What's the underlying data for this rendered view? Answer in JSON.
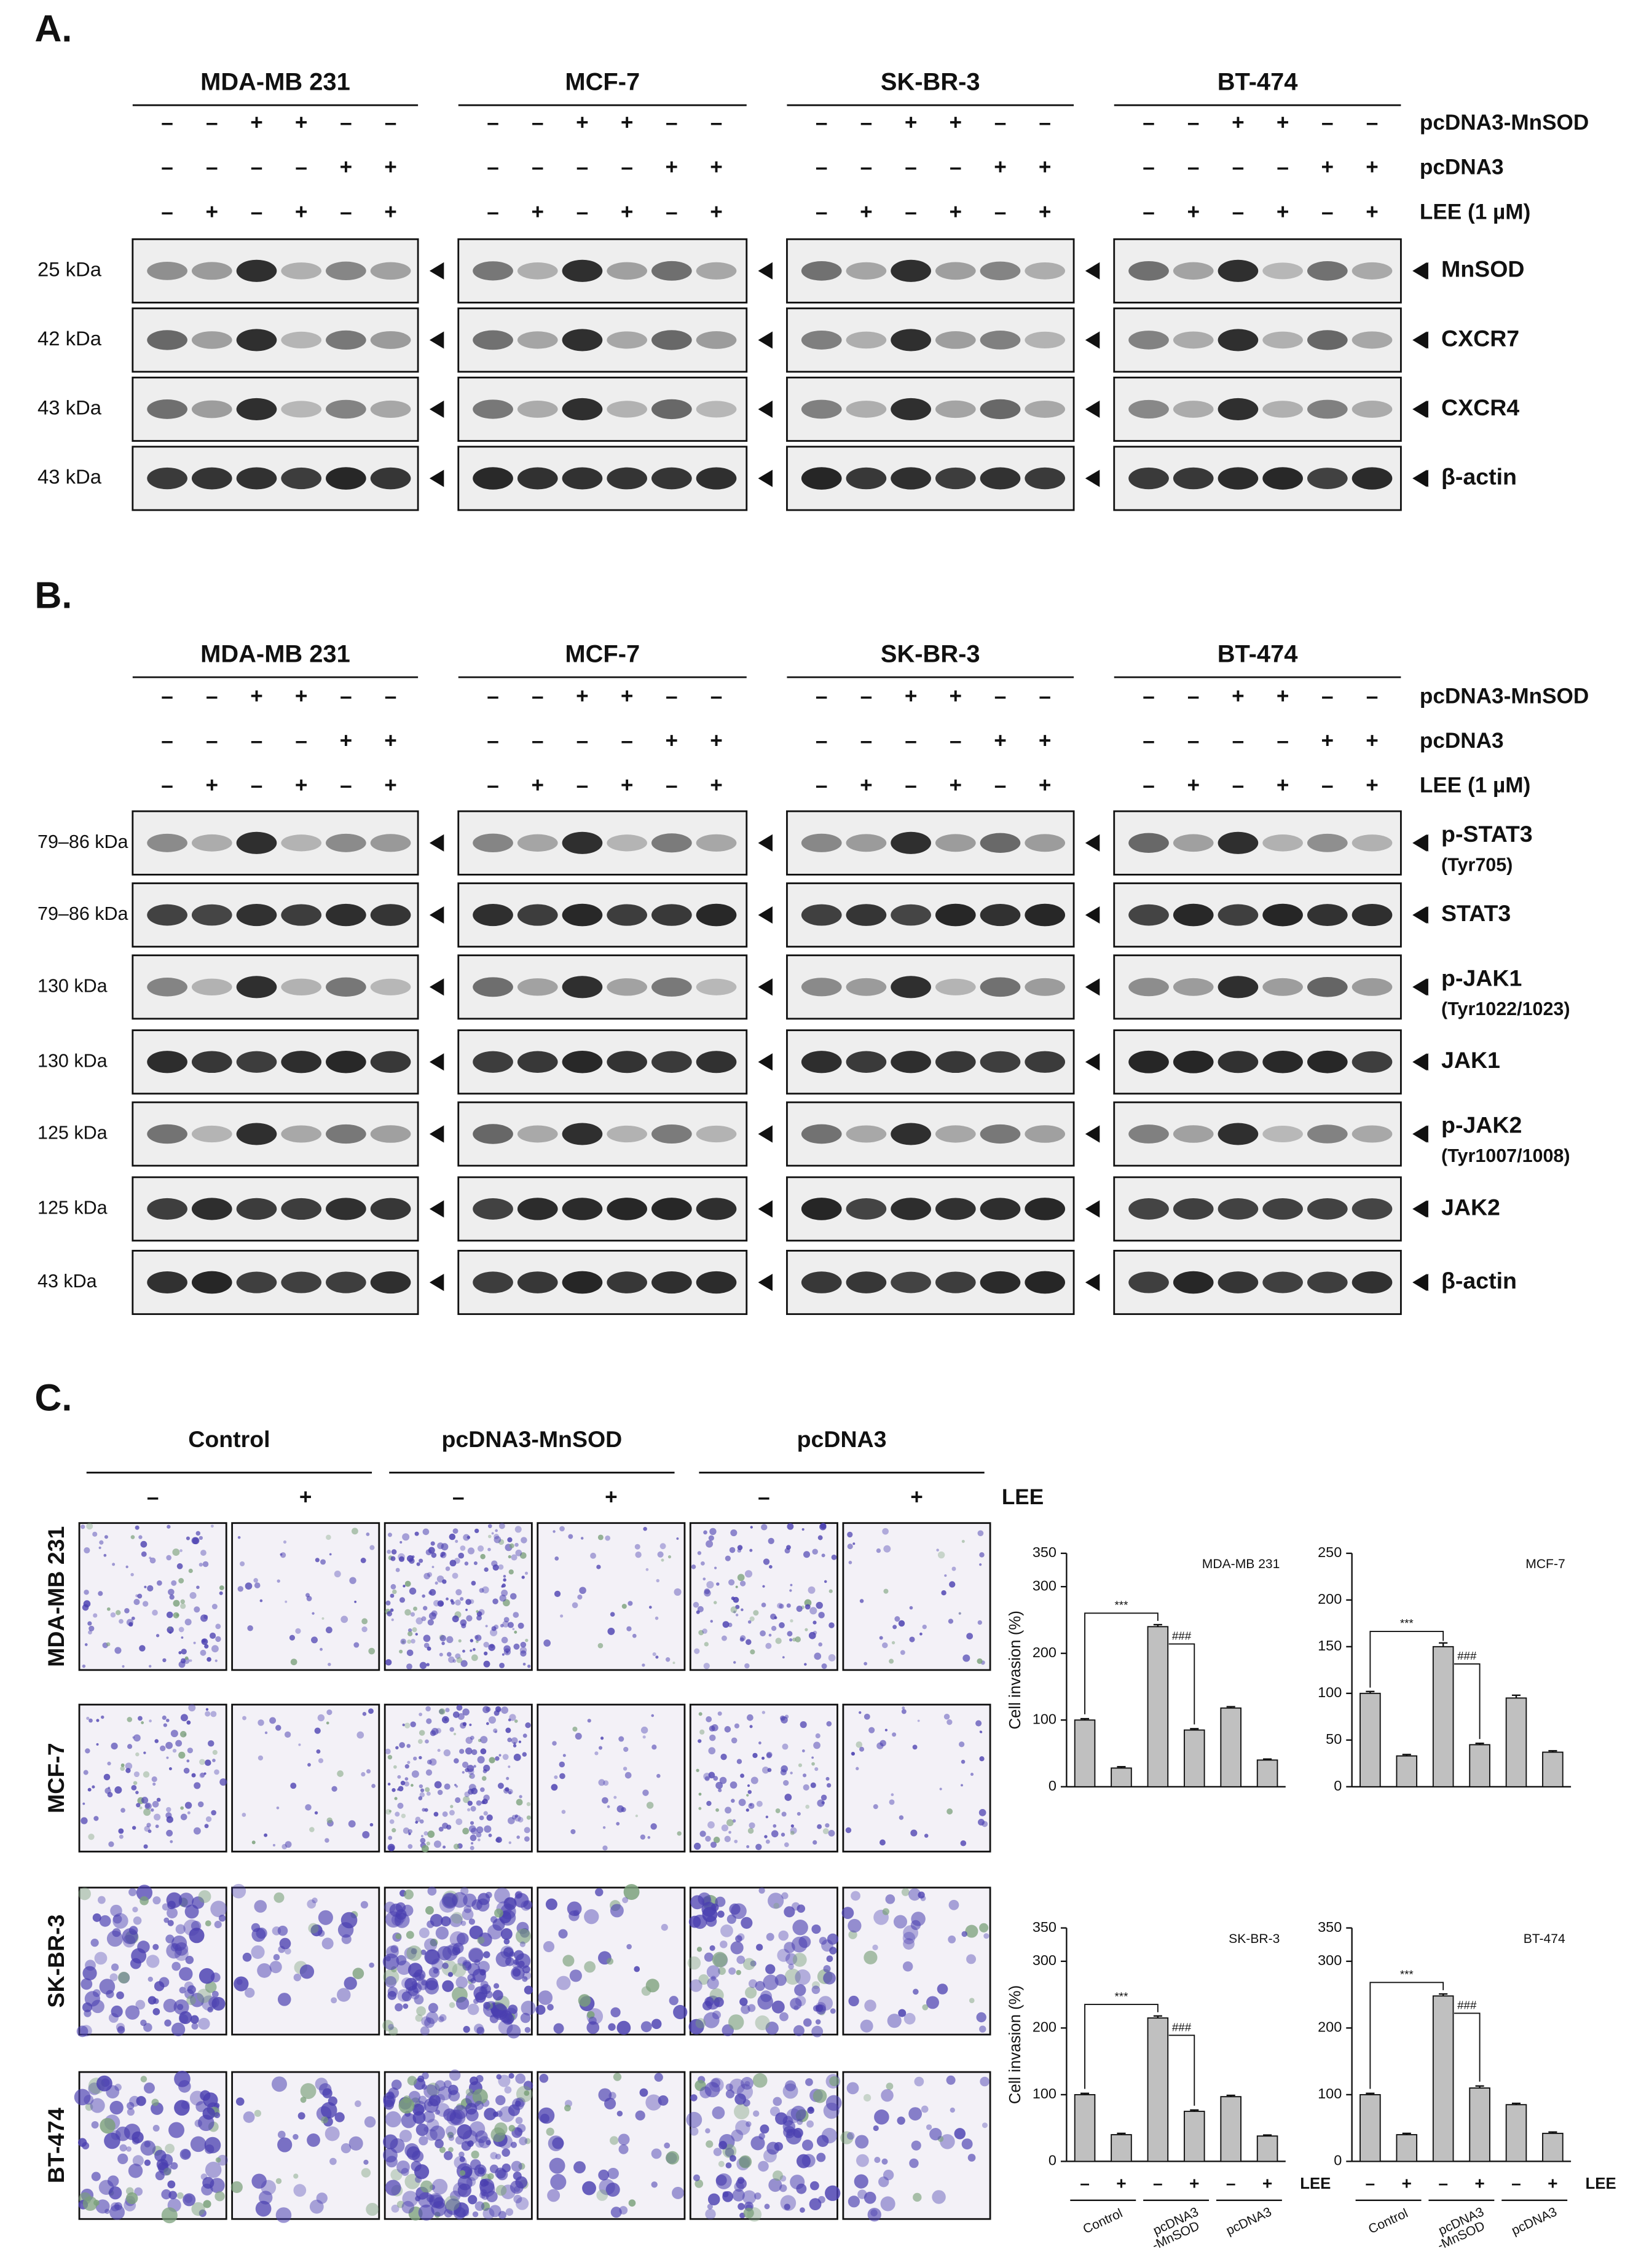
{
  "figure": {
    "panel_a": {
      "label": "A.",
      "cell_lines": [
        "MDA-MB 231",
        "MCF-7",
        "SK-BR-3",
        "BT-474"
      ],
      "conditions": [
        {
          "label": "pcDNA3-MnSOD",
          "signs": [
            "–",
            "–",
            "+",
            "+",
            "–",
            "–"
          ]
        },
        {
          "label": "pcDNA3",
          "signs": [
            "–",
            "–",
            "–",
            "–",
            "+",
            "+"
          ]
        },
        {
          "label": "LEE (1 µM)",
          "signs": [
            "–",
            "+",
            "–",
            "+",
            "–",
            "+"
          ]
        }
      ],
      "blots": [
        {
          "size": "25 kDa",
          "protein": "MnSOD"
        },
        {
          "size": "42 kDa",
          "protein": "CXCR7"
        },
        {
          "size": "43 kDa",
          "protein": "CXCR4"
        },
        {
          "size": "43 kDa",
          "protein": "β-actin"
        }
      ]
    },
    "panel_b": {
      "label": "B.",
      "cell_lines": [
        "MDA-MB 231",
        "MCF-7",
        "SK-BR-3",
        "BT-474"
      ],
      "conditions": [
        {
          "label": "pcDNA3-MnSOD",
          "signs": [
            "–",
            "–",
            "+",
            "+",
            "–",
            "–"
          ]
        },
        {
          "label": "pcDNA3",
          "signs": [
            "–",
            "–",
            "–",
            "–",
            "+",
            "+"
          ]
        },
        {
          "label": "LEE (1 µM)",
          "signs": [
            "–",
            "+",
            "–",
            "+",
            "–",
            "+"
          ]
        }
      ],
      "blots": [
        {
          "size": "79–86 kDa",
          "protein": "p-STAT3",
          "site": "(Tyr705)"
        },
        {
          "size": "79–86 kDa",
          "protein": "STAT3"
        },
        {
          "size": "130 kDa",
          "protein": "p-JAK1",
          "site": "(Tyr1022/1023)"
        },
        {
          "size": "130 kDa",
          "protein": "JAK1"
        },
        {
          "size": "125 kDa",
          "protein": "p-JAK2",
          "site": "(Tyr1007/1008)"
        },
        {
          "size": "125 kDa",
          "protein": "JAK2"
        },
        {
          "size": "43 kDa",
          "protein": "β-actin"
        }
      ]
    },
    "panel_c": {
      "label": "C.",
      "groups": [
        "Control",
        "pcDNA3-MnSOD",
        "pcDNA3"
      ],
      "signs": [
        "–",
        "+",
        "–",
        "+",
        "–",
        "+"
      ],
      "treatment": "LEE",
      "cell_lines": [
        "MDA-MB 231",
        "MCF-7",
        "SK-BR-3",
        "BT-474"
      ]
    }
  },
  "chart_data": [
    {
      "type": "bar",
      "title": "MDA-MB 231",
      "ylabel": "Cell invasion (%)",
      "color": "#c0c0c0",
      "categories": [
        null,
        null,
        null,
        null,
        null,
        null
      ],
      "values": [
        100,
        28,
        240,
        85,
        118,
        40
      ],
      "errors": [
        2,
        2,
        3,
        2,
        2,
        1.5
      ],
      "ylim": [
        0,
        350
      ],
      "yticks": [
        0,
        100,
        200,
        300,
        350
      ],
      "annotations": [
        "***",
        "###"
      ]
    },
    {
      "type": "bar",
      "title": "MCF-7",
      "color": "#c0c0c0",
      "categories": [
        null,
        null,
        null,
        null,
        null,
        null
      ],
      "values": [
        100,
        33,
        150,
        45,
        95,
        37
      ],
      "errors": [
        2,
        1.5,
        4,
        1.5,
        3,
        1.5
      ],
      "ylim": [
        0,
        250
      ],
      "yticks": [
        0,
        50,
        100,
        150,
        200,
        250
      ],
      "annotations": [
        "***",
        "###"
      ]
    },
    {
      "type": "bar",
      "title": "SK-BR-3",
      "ylabel": "Cell invasion (%)",
      "color": "#c0c0c0",
      "categories": [
        "–",
        "+",
        "–",
        "+",
        "–",
        "+"
      ],
      "groups": [
        [
          "Control"
        ],
        [
          "pcDNA3",
          "-MnSOD"
        ],
        [
          "pcDNA3"
        ]
      ],
      "treatment": "LEE",
      "values": [
        100,
        40,
        215,
        75,
        97,
        38
      ],
      "errors": [
        2,
        2,
        3,
        2,
        2,
        1.5
      ],
      "ylim": [
        0,
        350
      ],
      "yticks": [
        0,
        100,
        200,
        300,
        350
      ],
      "annotations": [
        "***",
        "###"
      ]
    },
    {
      "type": "bar",
      "title": "BT-474",
      "color": "#c0c0c0",
      "categories": [
        "–",
        "+",
        "–",
        "+",
        "–",
        "+"
      ],
      "groups": [
        [
          "Control"
        ],
        [
          "pcDNA3",
          "-MnSOD"
        ],
        [
          "pcDNA3"
        ]
      ],
      "treatment": "LEE",
      "values": [
        100,
        40,
        248,
        110,
        85,
        42
      ],
      "errors": [
        2,
        2,
        3,
        3,
        2,
        2
      ],
      "ylim": [
        0,
        350
      ],
      "yticks": [
        0,
        100,
        200,
        300,
        350
      ],
      "annotations": [
        "***",
        "###"
      ]
    }
  ]
}
